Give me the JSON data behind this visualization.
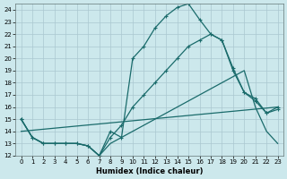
{
  "xlabel": "Humidex (Indice chaleur)",
  "bg_color": "#cce8ec",
  "grid_color": "#aac8d0",
  "line_color": "#1a6b6b",
  "xlim": [
    -0.5,
    23.5
  ],
  "ylim": [
    12,
    24.5
  ],
  "xticks": [
    0,
    1,
    2,
    3,
    4,
    5,
    6,
    7,
    8,
    9,
    10,
    11,
    12,
    13,
    14,
    15,
    16,
    17,
    18,
    19,
    20,
    21,
    22,
    23
  ],
  "yticks": [
    12,
    13,
    14,
    15,
    16,
    17,
    18,
    19,
    20,
    21,
    22,
    23,
    24
  ],
  "line1_x": [
    0,
    1,
    2,
    3,
    4,
    5,
    6,
    7,
    8,
    9,
    10,
    11,
    12,
    13,
    14,
    15,
    16,
    17,
    18,
    19,
    20,
    21,
    22,
    23
  ],
  "line1_y": [
    15,
    13.5,
    13,
    13,
    13,
    13,
    12.8,
    12,
    14,
    13.5,
    20,
    21,
    22.5,
    23.5,
    24.2,
    24.5,
    23.2,
    22,
    21.5,
    19,
    17.2,
    16.7,
    15.5,
    16
  ],
  "line2_x": [
    0,
    1,
    2,
    3,
    4,
    5,
    6,
    7,
    8,
    9,
    10,
    11,
    12,
    13,
    14,
    15,
    16,
    17,
    18,
    19,
    20,
    21,
    22,
    23
  ],
  "line2_y": [
    15,
    13.5,
    13,
    13,
    13,
    13,
    12.8,
    12,
    13.5,
    14.5,
    16,
    17,
    18,
    19,
    20,
    21,
    21.5,
    22,
    21.5,
    19.2,
    17.2,
    16.5,
    15.5,
    15.8
  ],
  "line3_x": [
    0,
    1,
    2,
    3,
    4,
    5,
    6,
    7,
    8,
    9,
    10,
    11,
    12,
    13,
    14,
    15,
    16,
    17,
    18,
    19,
    20,
    21,
    22,
    23
  ],
  "line3_y": [
    15,
    13.5,
    13,
    13,
    13,
    13,
    12.8,
    12,
    13,
    13.5,
    14,
    14.5,
    15,
    15.5,
    16,
    16.5,
    17,
    17.5,
    18,
    18.5,
    19,
    16,
    14,
    13
  ],
  "line4_x": [
    0,
    23
  ],
  "line4_y": [
    14,
    16
  ]
}
